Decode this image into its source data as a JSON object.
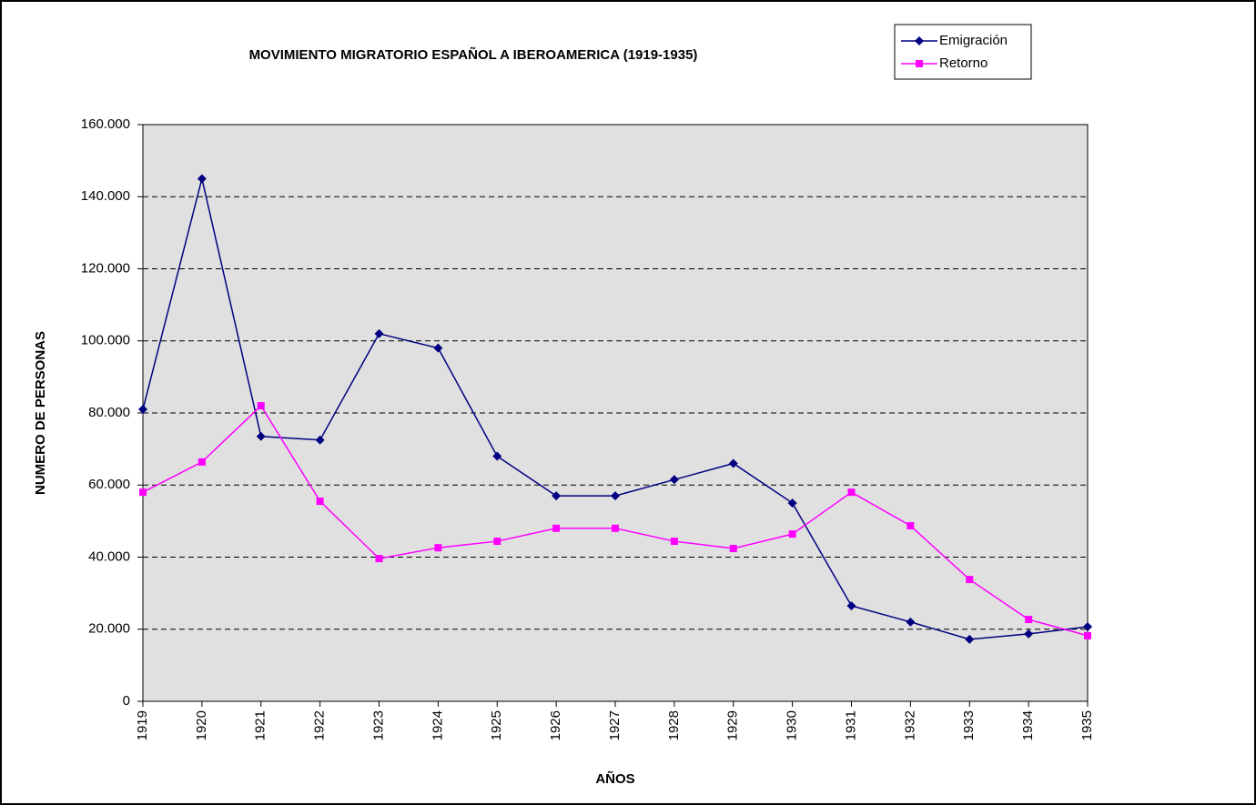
{
  "chart_data": {
    "type": "line",
    "title": "MOVIMIENTO MIGRATORIO ESPAÑOL A IBEROAMERICA (1919-1935)",
    "x_label": "AÑOS",
    "y_label": "NUMERO DE PERSONAS",
    "x": [
      1919,
      1920,
      1921,
      1922,
      1923,
      1924,
      1925,
      1926,
      1927,
      1928,
      1929,
      1930,
      1931,
      1932,
      1933,
      1934,
      1935
    ],
    "xlim": [
      1919,
      1935
    ],
    "xticks": [
      1919,
      1920,
      1921,
      1922,
      1923,
      1924,
      1925,
      1926,
      1927,
      1928,
      1929,
      1930,
      1931,
      1932,
      1933,
      1934,
      1935
    ],
    "ylim": [
      0,
      160000
    ],
    "yticks": [
      0,
      {
        "value": 20000,
        "label": "20.000"
      },
      {
        "value": 40000,
        "label": "40.000"
      },
      {
        "value": 60000,
        "label": "60.000"
      },
      {
        "value": 80000,
        "label": "80.000"
      },
      {
        "value": 100000,
        "label": "100.000"
      },
      {
        "value": 120000,
        "label": "120.000"
      },
      {
        "value": 140000,
        "label": "140.000"
      },
      {
        "value": 160000,
        "label": "160.000"
      }
    ],
    "grid": true,
    "legend": "top-right",
    "series": [
      {
        "name": "Emigración",
        "color": "#000080",
        "marker": "diamond",
        "values": [
          81000,
          145000,
          73500,
          72500,
          102000,
          98000,
          68000,
          57000,
          57000,
          61500,
          66000,
          55000,
          26500,
          22000,
          17200,
          18700,
          20700
        ]
      },
      {
        "name": "Retorno",
        "color": "#ff00ff",
        "marker": "square",
        "values": [
          58000,
          66400,
          82000,
          55500,
          39600,
          42600,
          44400,
          48000,
          48000,
          44400,
          42400,
          46400,
          58000,
          48700,
          33800,
          22700,
          18200
        ]
      }
    ]
  }
}
